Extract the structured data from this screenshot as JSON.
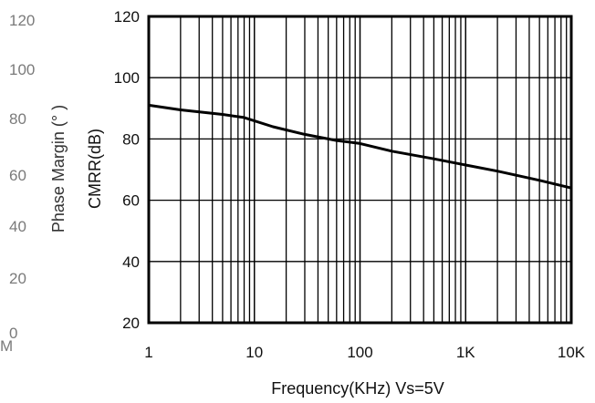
{
  "chart_data": {
    "type": "line",
    "x_scale": "log",
    "xlim": [
      1,
      10000
    ],
    "ylim": [
      20,
      120
    ],
    "grid": true,
    "xlabel": "Frequency(KHz) Vs=5V",
    "ylabel": "CMRR(dB)",
    "x_ticks": [
      {
        "value": 1,
        "label": "1"
      },
      {
        "value": 10,
        "label": "10"
      },
      {
        "value": 100,
        "label": "100"
      },
      {
        "value": 1000,
        "label": "1K"
      },
      {
        "value": 10000,
        "label": "10K"
      }
    ],
    "y_ticks": [
      20,
      40,
      60,
      80,
      100,
      120
    ],
    "series": [
      {
        "color": "#000000",
        "x": [
          1,
          2,
          5,
          8,
          15,
          30,
          60,
          100,
          200,
          500,
          1000,
          2000,
          5000,
          10000
        ],
        "y": [
          91,
          89.5,
          88,
          87,
          84,
          81.5,
          79.5,
          78.5,
          76,
          73.5,
          71.5,
          69.5,
          66.5,
          64
        ]
      }
    ]
  },
  "ghost_axis": {
    "label": "Phase Margin (° )",
    "ticks": [
      "120",
      "100",
      "80",
      "60",
      "40",
      "20",
      "0"
    ],
    "corner_text": "M"
  }
}
